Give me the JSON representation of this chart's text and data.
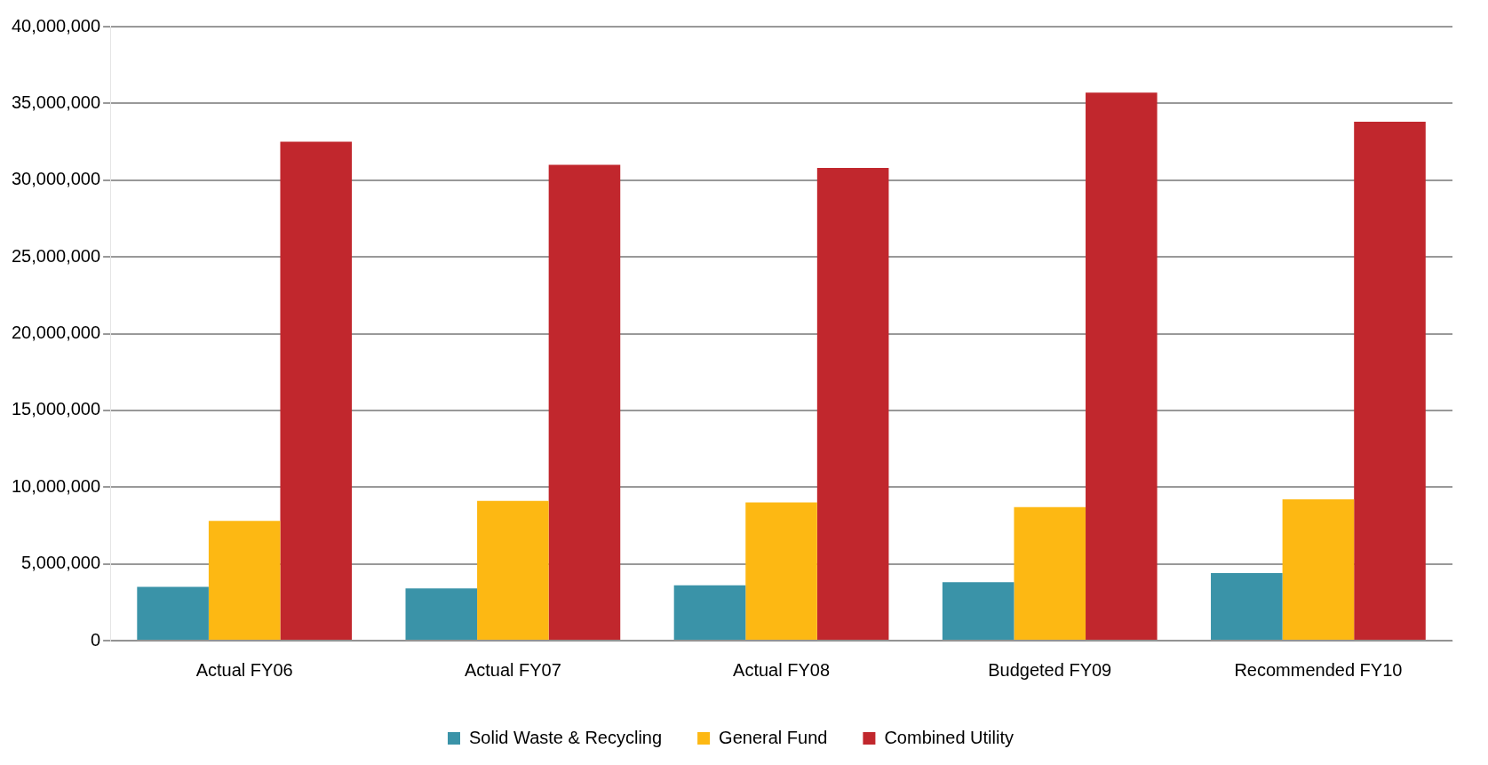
{
  "chart_data": {
    "type": "bar",
    "categories": [
      "Actual FY06",
      "Actual FY07",
      "Actual FY08",
      "Budgeted FY09",
      "Recommended FY10"
    ],
    "series": [
      {
        "name": "Solid Waste & Recycling",
        "color": "#3a93a8",
        "values": [
          3500000,
          3400000,
          3600000,
          3800000,
          4400000
        ]
      },
      {
        "name": "General Fund",
        "color": "#fdb813",
        "values": [
          7800000,
          9100000,
          9000000,
          8700000,
          9200000
        ]
      },
      {
        "name": "Combined Utility",
        "color": "#c1272d",
        "values": [
          32500000,
          31000000,
          30800000,
          35700000,
          33800000
        ]
      }
    ],
    "ylim": [
      0,
      40000000
    ],
    "yticks": [
      0,
      {
        "value": 5000000,
        "label": "5,000,000"
      },
      {
        "value": 10000000,
        "label": "10,000,000"
      },
      {
        "value": 15000000,
        "label": "15,000,000"
      },
      {
        "value": 20000000,
        "label": "20,000,000"
      },
      {
        "value": 25000000,
        "label": "25,000,000"
      },
      {
        "value": 30000000,
        "label": "30,000,000"
      },
      {
        "value": 35000000,
        "label": "35,000,000"
      },
      {
        "value": 40000000,
        "label": "40,000,000"
      }
    ],
    "grid": "y",
    "legend": "bottom"
  }
}
